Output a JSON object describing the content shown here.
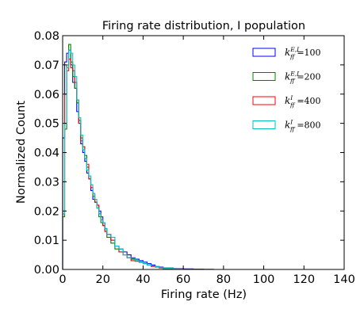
{
  "chart_data": {
    "type": "line",
    "style": "step-histogram",
    "title": "Firing rate distribution, I population",
    "xlabel": "Firing rate (Hz)",
    "ylabel": "Normalized Count",
    "xlim": [
      0,
      140
    ],
    "ylim": [
      0,
      0.08
    ],
    "xticks": [
      "0",
      "20",
      "40",
      "60",
      "80",
      "100",
      "120",
      "140"
    ],
    "yticks": [
      "0.00",
      "0.01",
      "0.02",
      "0.03",
      "0.04",
      "0.05",
      "0.06",
      "0.07",
      "0.08"
    ],
    "grid": false,
    "legend_position": "top-right",
    "series": [
      {
        "name": "k_ff^{E,I}=100",
        "legend": {
          "base": "k",
          "sub": "ff",
          "sup": "E,I",
          "value": "=100"
        },
        "color": "#0000ff",
        "bin_edges": [
          0,
          1,
          2,
          3,
          4,
          5,
          6,
          7,
          8,
          9,
          10,
          11,
          12,
          13,
          14,
          15,
          16,
          17,
          18,
          19,
          20,
          21,
          22,
          24,
          26,
          28,
          30,
          32,
          34,
          36,
          38,
          40,
          42,
          44,
          46,
          48,
          50,
          55,
          60,
          65,
          70,
          75
        ],
        "values": [
          0.045,
          0.071,
          0.074,
          0.075,
          0.07,
          0.064,
          0.062,
          0.054,
          0.05,
          0.043,
          0.04,
          0.037,
          0.033,
          0.031,
          0.027,
          0.024,
          0.023,
          0.022,
          0.02,
          0.018,
          0.016,
          0.014,
          0.012,
          0.01,
          0.008,
          0.007,
          0.006,
          0.005,
          0.004,
          0.0035,
          0.003,
          0.0025,
          0.002,
          0.0015,
          0.001,
          0.0008,
          0.0005,
          0.0003,
          0.0002,
          0.0001,
          5e-05
        ]
      },
      {
        "name": "k_ff^{E,I}=200",
        "legend": {
          "base": "k",
          "sub": "ff",
          "sup": "E,I",
          "value": "=200"
        },
        "color": "#008000",
        "bin_edges": [
          0,
          1,
          2,
          3,
          4,
          5,
          6,
          7,
          8,
          9,
          10,
          11,
          12,
          13,
          14,
          15,
          16,
          17,
          18,
          19,
          20,
          21,
          22,
          24,
          26,
          28,
          30,
          32,
          34,
          36,
          38,
          40,
          42,
          44,
          46,
          48,
          50,
          55,
          60,
          65,
          70
        ],
        "values": [
          0.018,
          0.048,
          0.07,
          0.077,
          0.071,
          0.066,
          0.062,
          0.057,
          0.051,
          0.045,
          0.042,
          0.039,
          0.035,
          0.032,
          0.028,
          0.025,
          0.023,
          0.021,
          0.018,
          0.016,
          0.015,
          0.013,
          0.011,
          0.009,
          0.007,
          0.006,
          0.005,
          0.004,
          0.0035,
          0.003,
          0.0025,
          0.002,
          0.0015,
          0.0012,
          0.0009,
          0.0006,
          0.0004,
          0.0002,
          0.0001,
          5e-05
        ]
      },
      {
        "name": "k_ff^I=400",
        "legend": {
          "base": "k",
          "sub": "ff",
          "sup": "I",
          "value": "=400"
        },
        "color": "#ff0000",
        "bin_edges": [
          0,
          1,
          2,
          3,
          4,
          5,
          6,
          7,
          8,
          9,
          10,
          11,
          12,
          13,
          14,
          15,
          16,
          17,
          18,
          19,
          20,
          21,
          22,
          24,
          26,
          28,
          30,
          32,
          34,
          36,
          38,
          40,
          42,
          44,
          46,
          48,
          50,
          55,
          60,
          65
        ],
        "values": [
          0.03,
          0.06,
          0.068,
          0.072,
          0.069,
          0.068,
          0.064,
          0.058,
          0.05,
          0.044,
          0.042,
          0.038,
          0.036,
          0.031,
          0.028,
          0.026,
          0.023,
          0.022,
          0.019,
          0.017,
          0.015,
          0.013,
          0.012,
          0.01,
          0.008,
          0.006,
          0.005,
          0.004,
          0.003,
          0.0028,
          0.0025,
          0.002,
          0.0015,
          0.001,
          0.0008,
          0.0005,
          0.0003,
          0.0002,
          0.0001
        ]
      },
      {
        "name": "k_ff^I=800",
        "legend": {
          "base": "k",
          "sub": "ff",
          "sup": "I",
          "value": "=800"
        },
        "color": "#00bfbf",
        "bin_edges": [
          0,
          1,
          2,
          3,
          4,
          5,
          6,
          7,
          8,
          9,
          10,
          11,
          12,
          13,
          14,
          15,
          16,
          17,
          18,
          19,
          20,
          21,
          22,
          24,
          26,
          28,
          30,
          32,
          34,
          36,
          38,
          40,
          42,
          44,
          46,
          48,
          50,
          55,
          60
        ],
        "values": [
          0.019,
          0.05,
          0.069,
          0.075,
          0.074,
          0.07,
          0.066,
          0.058,
          0.052,
          0.046,
          0.041,
          0.038,
          0.034,
          0.032,
          0.029,
          0.026,
          0.024,
          0.021,
          0.019,
          0.017,
          0.016,
          0.014,
          0.012,
          0.011,
          0.008,
          0.007,
          0.005,
          0.004,
          0.0038,
          0.003,
          0.0026,
          0.002,
          0.0015,
          0.0012,
          0.0009,
          0.0006,
          0.0004,
          0.0002
        ]
      }
    ]
  }
}
